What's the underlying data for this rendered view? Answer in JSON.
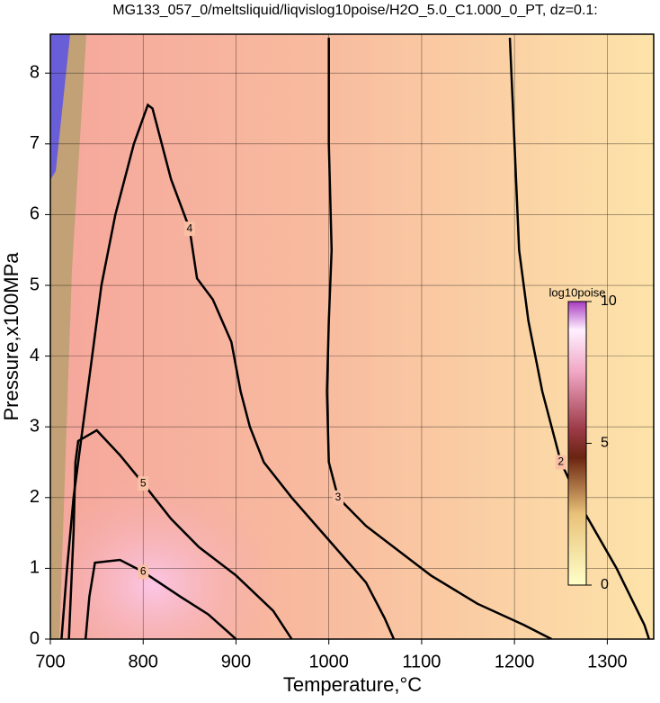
{
  "chart_data": {
    "type": "contour",
    "title": "MG133_057_0/meltsliquid/liqvislog10poise/H2O_5.0_C1.000_0_PT, dz=0.1:",
    "x_label": "Temperature,°C",
    "y_label": "Pressure,x100MPa",
    "xlim": [
      700,
      1350
    ],
    "ylim": [
      0,
      8.55
    ],
    "xticks": [
      700,
      800,
      900,
      1000,
      1100,
      1200,
      1300
    ],
    "yticks": [
      0,
      1,
      2,
      3,
      4,
      5,
      6,
      7,
      8
    ],
    "grid": true,
    "contours": [
      {
        "level": 2,
        "x": [
          1195,
          1200,
          1205,
          1215,
          1230,
          1250,
          1275,
          1310,
          1340,
          1345
        ],
        "y": [
          8.5,
          7,
          5.5,
          4.5,
          3.5,
          2.5,
          1.8,
          1.0,
          0.2,
          0
        ]
      },
      {
        "level": 3,
        "x": [
          1000,
          1000,
          1003,
          1000,
          998,
          1000,
          1010,
          1040,
          1080,
          1110,
          1160,
          1210,
          1240
        ],
        "y": [
          8.5,
          7,
          5.5,
          4.5,
          3.5,
          2.5,
          2,
          1.6,
          1.2,
          0.9,
          0.5,
          0.2,
          0
        ]
      },
      {
        "level": 4,
        "x": [
          712,
          718,
          725,
          735,
          745,
          755,
          770,
          790,
          805,
          810,
          830,
          850,
          858,
          875,
          895,
          905,
          915,
          930,
          960,
          1000,
          1040,
          1060,
          1070
        ],
        "y": [
          0,
          1,
          2,
          3,
          4,
          5,
          6,
          7,
          7.55,
          7.5,
          6.5,
          5.8,
          5.1,
          4.8,
          4.2,
          3.5,
          3,
          2.5,
          2,
          1.4,
          0.8,
          0.3,
          0
        ]
      },
      {
        "level": 5,
        "x": [
          720,
          725,
          727,
          730,
          750,
          775,
          800,
          830,
          860,
          900,
          940,
          960
        ],
        "y": [
          0,
          1.5,
          2.5,
          2.8,
          2.95,
          2.6,
          2.2,
          1.7,
          1.3,
          0.9,
          0.4,
          0
        ]
      },
      {
        "level": 6,
        "x": [
          738,
          742,
          748,
          775,
          800,
          840,
          870,
          900
        ],
        "y": [
          0,
          0.6,
          1.08,
          1.12,
          0.95,
          0.6,
          0.35,
          0
        ]
      }
    ],
    "colorbar": {
      "label": "log10poise",
      "lim": [
        0,
        10
      ],
      "ticks": [
        0,
        5,
        10
      ]
    }
  }
}
